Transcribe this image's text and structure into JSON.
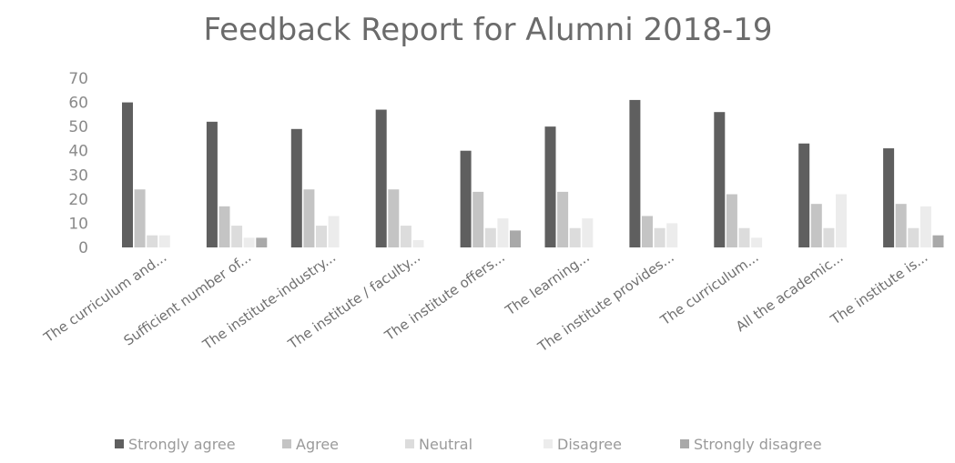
{
  "chart_data": {
    "type": "bar",
    "title": "Feedback Report for Alumni 2018-19",
    "xlabel": "",
    "ylabel": "",
    "ylim": [
      0,
      70
    ],
    "yticks": [
      0,
      10,
      20,
      30,
      40,
      50,
      60,
      70
    ],
    "grid": false,
    "legend_position": "bottom",
    "categories": [
      "The curriculum and...",
      "Sufficient number of...",
      "The institute-industry...",
      "The institute / faculty...",
      "The institute offers...",
      "The learning...",
      "The institute provides...",
      "The curriculum...",
      "All the academic...",
      "The institute is..."
    ],
    "series": [
      {
        "name": "Strongly agree",
        "color": "#5f5f5f",
        "values": [
          60,
          52,
          49,
          57,
          40,
          50,
          61,
          56,
          43,
          41
        ]
      },
      {
        "name": "Agree",
        "color": "#c4c4c4",
        "values": [
          24,
          17,
          24,
          24,
          23,
          23,
          13,
          22,
          18,
          18
        ]
      },
      {
        "name": "Neutral",
        "color": "#dcdcdc",
        "values": [
          5,
          9,
          9,
          9,
          8,
          8,
          8,
          8,
          8,
          8
        ]
      },
      {
        "name": "Disagree",
        "color": "#ececec",
        "values": [
          5,
          4,
          13,
          3,
          12,
          12,
          10,
          4,
          22,
          17
        ]
      },
      {
        "name": "Strongly disagree",
        "color": "#a9a9a9",
        "values": [
          0,
          4,
          0,
          0,
          7,
          0,
          0,
          0,
          0,
          5
        ]
      }
    ]
  }
}
